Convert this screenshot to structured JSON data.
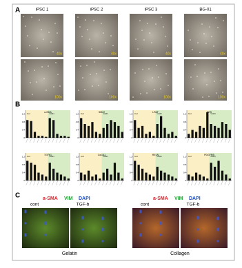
{
  "panels": {
    "a": {
      "label": "A",
      "columns": [
        "iPSC 1",
        "iPSC 2",
        "iPSC 3",
        "BG-01"
      ],
      "magnifications": [
        "40x",
        "100x"
      ]
    },
    "b": {
      "label": "B"
    },
    "c": {
      "label": "C",
      "stains": [
        "a-SMA",
        "VIM",
        "DAPI"
      ],
      "conditions": [
        "cont",
        "TGF-b"
      ],
      "substrates": [
        "Gelatin",
        "Collagen"
      ]
    }
  },
  "chart_data": [
    {
      "type": "bar",
      "title": "α-SMA",
      "groups": [
        "Col",
        "ColFi"
      ],
      "color": "#111111",
      "categories": [
        null,
        null,
        null,
        null,
        null,
        null,
        null,
        null,
        null,
        null,
        null,
        null
      ],
      "values": [
        0.9,
        0.85,
        0.3,
        0.1,
        0.1,
        0.05,
        1.0,
        0.9,
        0.2,
        0.1,
        0.1,
        0.05
      ],
      "ylim": [
        0,
        1.4
      ],
      "yticks": [
        0,
        0.4,
        0.8,
        1.2
      ]
    },
    {
      "type": "bar",
      "title": "SM22",
      "groups": [
        "Col",
        "ColFi"
      ],
      "color": "#111111",
      "categories": [
        null,
        null,
        null,
        null,
        null,
        null,
        null,
        null,
        null,
        null,
        null,
        null
      ],
      "values": [
        1.0,
        0.7,
        0.6,
        0.8,
        0.3,
        0.2,
        0.5,
        0.7,
        0.9,
        0.8,
        0.6,
        0.3
      ],
      "ylim": [
        0,
        1.4
      ],
      "yticks": [
        0,
        0.4,
        0.8,
        1.2
      ]
    },
    {
      "type": "bar",
      "title": "LRAT",
      "groups": [
        "Col",
        "ColFi"
      ],
      "color": "#111111",
      "categories": [
        null,
        null,
        null,
        null,
        null,
        null,
        null,
        null,
        null,
        null,
        null,
        null
      ],
      "values": [
        0.9,
        0.5,
        0.6,
        0.2,
        0.3,
        0.1,
        0.7,
        1.1,
        0.5,
        0.2,
        0.3,
        0.1
      ],
      "ylim": [
        0,
        1.4
      ],
      "yticks": [
        0,
        0.4,
        0.8,
        1.2
      ]
    },
    {
      "type": "bar",
      "title": "DES",
      "groups": [
        "Col",
        "ColFi"
      ],
      "color": "#111111",
      "categories": [
        null,
        null,
        null,
        null,
        null,
        null,
        null,
        null,
        null,
        null,
        null,
        null
      ],
      "values": [
        0.2,
        0.4,
        0.3,
        0.6,
        0.5,
        1.3,
        0.7,
        0.6,
        0.5,
        0.8,
        0.7,
        0.4
      ],
      "ylim": [
        0,
        1.4
      ],
      "yticks": [
        0,
        0.4,
        0.8,
        1.2
      ]
    },
    {
      "type": "bar",
      "title": "TGFb1",
      "groups": [
        "Col",
        "ColFi"
      ],
      "color": "#111111",
      "categories": [
        null,
        null,
        null,
        null,
        null,
        null,
        null,
        null,
        null,
        null,
        null,
        null
      ],
      "values": [
        1.0,
        0.9,
        0.8,
        0.4,
        0.3,
        0.2,
        0.9,
        0.6,
        0.4,
        0.3,
        0.2,
        0.1
      ],
      "ylim": [
        0,
        1.4
      ],
      "yticks": [
        0,
        0.4,
        0.8,
        1.2
      ]
    },
    {
      "type": "bar",
      "title": "Col1A1",
      "groups": [
        "Col",
        "ColFi"
      ],
      "color": "#111111",
      "categories": [
        null,
        null,
        null,
        null,
        null,
        null,
        null,
        null,
        null,
        null,
        null,
        null
      ],
      "values": [
        0.4,
        0.3,
        0.5,
        0.2,
        0.3,
        0.1,
        0.4,
        0.6,
        0.3,
        0.9,
        0.4,
        0.1
      ],
      "ylim": [
        0,
        1.4
      ],
      "yticks": [
        0,
        0.4,
        0.8,
        1.2
      ]
    },
    {
      "type": "bar",
      "title": "RELN",
      "groups": [
        "Col",
        "ColFi"
      ],
      "color": "#111111",
      "categories": [
        null,
        null,
        null,
        null,
        null,
        null,
        null,
        null,
        null,
        null,
        null,
        null
      ],
      "values": [
        1.0,
        0.8,
        0.6,
        0.4,
        0.3,
        0.2,
        0.7,
        0.5,
        0.4,
        0.3,
        0.2,
        0.1
      ],
      "ylim": [
        0,
        1.4
      ],
      "yticks": [
        0,
        0.4,
        0.8,
        1.2
      ]
    },
    {
      "type": "bar",
      "title": "PDGFRB",
      "groups": [
        "Col",
        "ColFi"
      ],
      "color": "#111111",
      "categories": [
        null,
        null,
        null,
        null,
        null,
        null,
        null,
        null,
        null,
        null,
        null,
        null
      ],
      "values": [
        0.3,
        0.2,
        0.4,
        0.3,
        0.2,
        0.1,
        0.9,
        0.7,
        1.0,
        0.5,
        0.3,
        0.1
      ],
      "ylim": [
        0,
        1.4
      ],
      "yticks": [
        0,
        0.4,
        0.8,
        1.2
      ]
    }
  ]
}
